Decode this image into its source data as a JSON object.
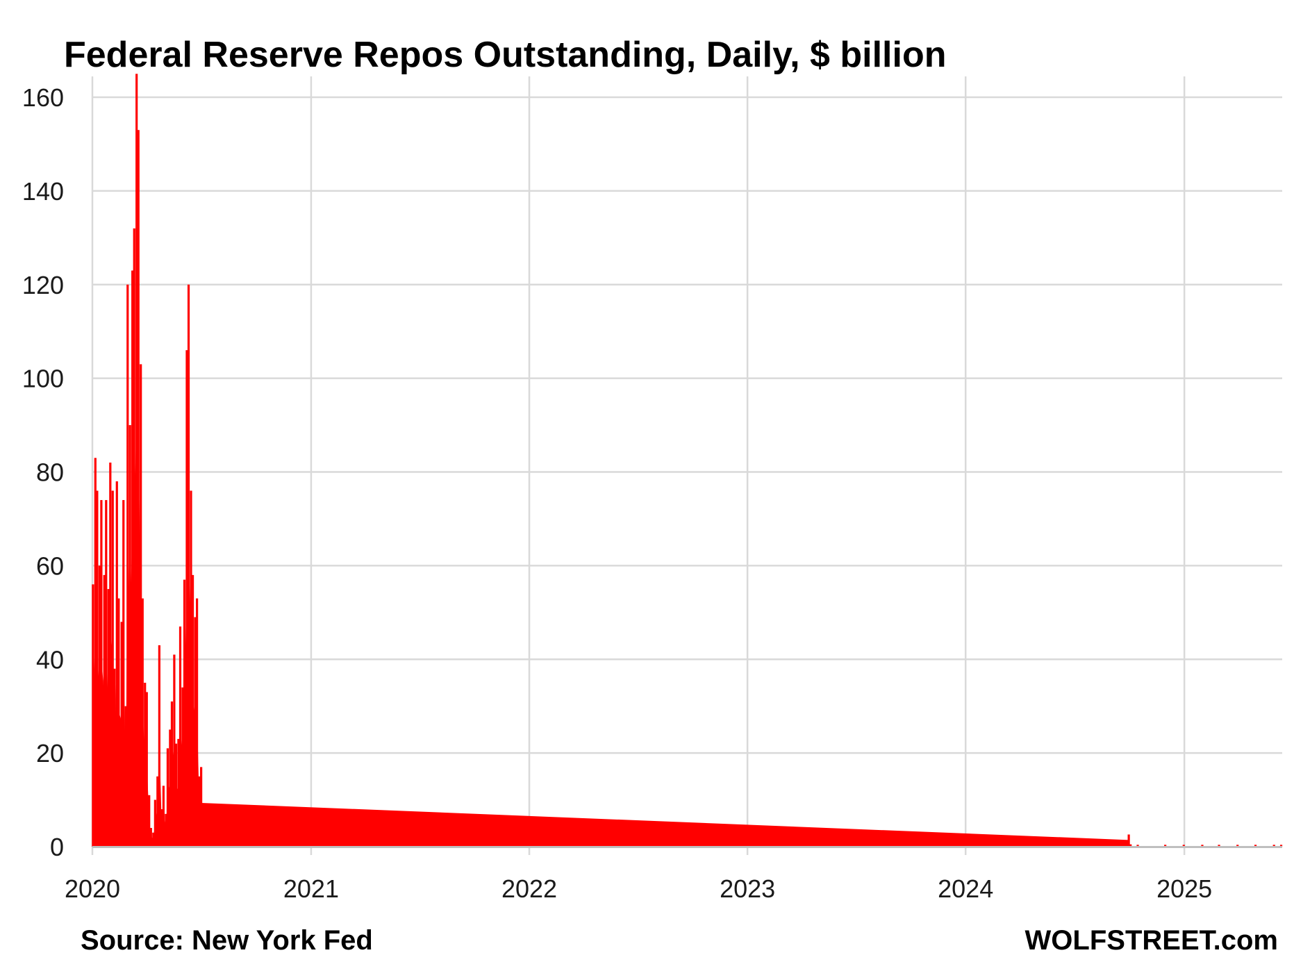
{
  "chart_data": {
    "type": "bar",
    "title": "Federal Reserve Repos Outstanding, Daily, $ billion",
    "xlabel": "",
    "ylabel": "",
    "ylim": [
      0,
      165
    ],
    "xlim": [
      "2020-01-01",
      "2025-06-15"
    ],
    "y_ticks": [
      0,
      20,
      40,
      60,
      80,
      100,
      120,
      140,
      160
    ],
    "x_ticks": [
      "2020",
      "2021",
      "2022",
      "2023",
      "2024",
      "2025"
    ],
    "grid": true,
    "legend": "none",
    "color": "#ff0000",
    "x": [
      "2020-01-02",
      "2020-01-06",
      "2020-01-09",
      "2020-01-13",
      "2020-01-16",
      "2020-01-21",
      "2020-01-24",
      "2020-01-28",
      "2020-01-31",
      "2020-02-04",
      "2020-02-07",
      "2020-02-11",
      "2020-02-14",
      "2020-02-19",
      "2020-02-22",
      "2020-02-26",
      "2020-02-29",
      "2020-03-04",
      "2020-03-08",
      "2020-03-11",
      "2020-03-15",
      "2020-03-18",
      "2020-03-22",
      "2020-03-25",
      "2020-03-29",
      "2020-04-01",
      "2020-04-05",
      "2020-04-08",
      "2020-04-12",
      "2020-04-15",
      "2020-04-19",
      "2020-04-22",
      "2020-04-26",
      "2020-04-29",
      "2020-05-03",
      "2020-05-06",
      "2020-05-10",
      "2020-05-13",
      "2020-05-17",
      "2020-05-20",
      "2020-05-24",
      "2020-05-27",
      "2020-05-31",
      "2020-06-03",
      "2020-06-07",
      "2020-06-10",
      "2020-06-14",
      "2020-06-17",
      "2020-06-21",
      "2020-06-24",
      "2020-06-28",
      "2020-07-01",
      "2020-10-01",
      "2021-06-01",
      "2021-09-25",
      "2021-10-20",
      "2021-11-20",
      "2021-12-31",
      "2022-01-15",
      "2022-03-31",
      "2022-04-30",
      "2022-06-20",
      "2022-07-30",
      "2022-09-15",
      "2022-10-15",
      "2022-11-30",
      "2023-01-15",
      "2023-02-28",
      "2023-04-15",
      "2023-05-31",
      "2023-06-30",
      "2023-08-15",
      "2023-09-30",
      "2023-11-15",
      "2023-12-31",
      "2024-01-31",
      "2024-03-15",
      "2024-04-30",
      "2024-06-15",
      "2024-07-31",
      "2024-08-31",
      "2024-09-25",
      "2024-09-30",
      "2024-10-03",
      "2024-10-15",
      "2024-11-30",
      "2024-12-31",
      "2025-01-31",
      "2025-02-28",
      "2025-03-31",
      "2025-04-30",
      "2025-05-31",
      "2025-06-12"
    ],
    "values": [
      56,
      83,
      76,
      60,
      74,
      58,
      74,
      55,
      82,
      76,
      38,
      78,
      53,
      48,
      74,
      30,
      120,
      90,
      123,
      132,
      165,
      153,
      103,
      53,
      35,
      33,
      11,
      4,
      3,
      10,
      15,
      43,
      8,
      13,
      7,
      21,
      25,
      31,
      41,
      22,
      23,
      47,
      34,
      57,
      106,
      120,
      76,
      58,
      49,
      53,
      15,
      17,
      0.1,
      0.1,
      0.1,
      0.1,
      0.1,
      0.2,
      0.2,
      0.2,
      0.2,
      0.2,
      0.2,
      0.2,
      0.2,
      0.2,
      0.2,
      0.2,
      0.2,
      0.2,
      0.2,
      0.2,
      0.2,
      0.2,
      0.3,
      0.3,
      0.3,
      0.3,
      0.3,
      0.3,
      0.3,
      0.5,
      2.6,
      0.5,
      0.4,
      0.4,
      0.4,
      0.4,
      0.4,
      0.4,
      0.4,
      0.4,
      0.4
    ]
  },
  "footer": {
    "source": "Source: New York Fed",
    "brand": "WOLFSTREET.com"
  }
}
